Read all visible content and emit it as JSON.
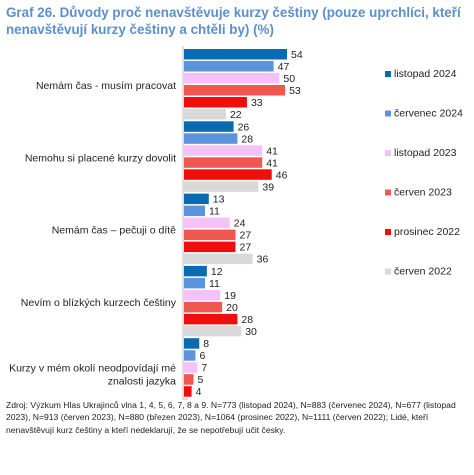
{
  "title": "Graf 26. Důvody proč nenavštěvuje kurzy češtiny (pouze uprchlíci, kteří nenavštěvují kurzy češtiny a chtěli by) (%)",
  "source": "Zdroj: Výzkum Hlas Ukrajinců vlna 1, 4, 5, 6, 7, 8 a 9. N=773 (listopad 2024), N=883 (červenec 2024), N=677 (listopad 2023), N=913 (červen 2023), N=880 (březen 2023), N=1064 (prosinec 2022), N=1111 (červen 2022); Lidé, kteří nenavštěvují kurz češtiny a kteří nedeklarují, že se nepotřebují učit česky.",
  "chart_data": {
    "type": "bar",
    "orientation": "horizontal",
    "categories": [
      "Nemám čas - musím pracovat",
      "Nemohu si placené kurzy dovolit",
      "Nemám čas – pečuji o dítě",
      "Nevím o blízkých kurzech češtiny",
      "Kurzy v mém okolí neodpovídají mé znalosti jazyka"
    ],
    "series": [
      {
        "name": "listopad 2024",
        "color": "#0a6ab2",
        "values": [
          54,
          26,
          13,
          12,
          8
        ]
      },
      {
        "name": "červenec 2024",
        "color": "#5b93dc",
        "values": [
          47,
          28,
          11,
          11,
          6
        ]
      },
      {
        "name": "listopad 2023",
        "color": "#f4c2f8",
        "values": [
          50,
          41,
          24,
          19,
          7
        ]
      },
      {
        "name": "červen 2023",
        "color": "#f0574f",
        "values": [
          53,
          41,
          27,
          20,
          5
        ]
      },
      {
        "name": "prosinec 2022",
        "color": "#f20d0d",
        "values": [
          33,
          46,
          27,
          28,
          4
        ]
      },
      {
        "name": "červen 2022",
        "color": "#d9d9d9",
        "values": [
          22,
          39,
          36,
          30,
          2
        ]
      }
    ],
    "xlim": [
      0,
      60
    ],
    "data_labels": true,
    "legend_position": "right",
    "grid": false
  }
}
